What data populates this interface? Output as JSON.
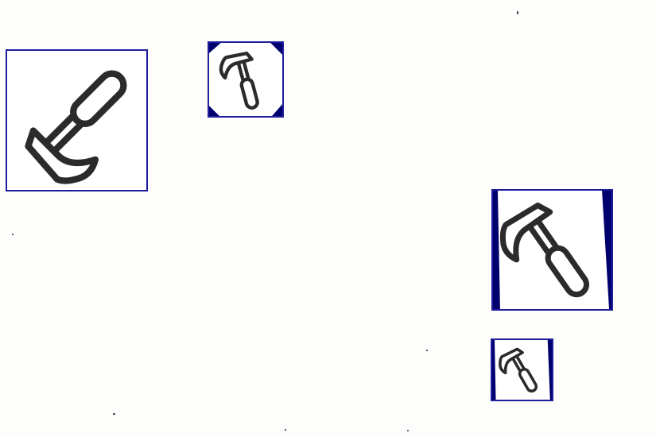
{
  "scene": {
    "background_color": "#fdfdfc",
    "frame_color": "#1e1e9c",
    "icon_color": "#2b2b2b",
    "fill_color": "#00006e"
  },
  "tiles": [
    {
      "icon": "hammer-icon",
      "rotation_deg": -135
    },
    {
      "icon": "hammer-icon",
      "rotation_deg": -15
    },
    {
      "icon": "hammer-icon",
      "rotation_deg": -35
    },
    {
      "icon": "hammer-icon",
      "rotation_deg": -30
    }
  ]
}
